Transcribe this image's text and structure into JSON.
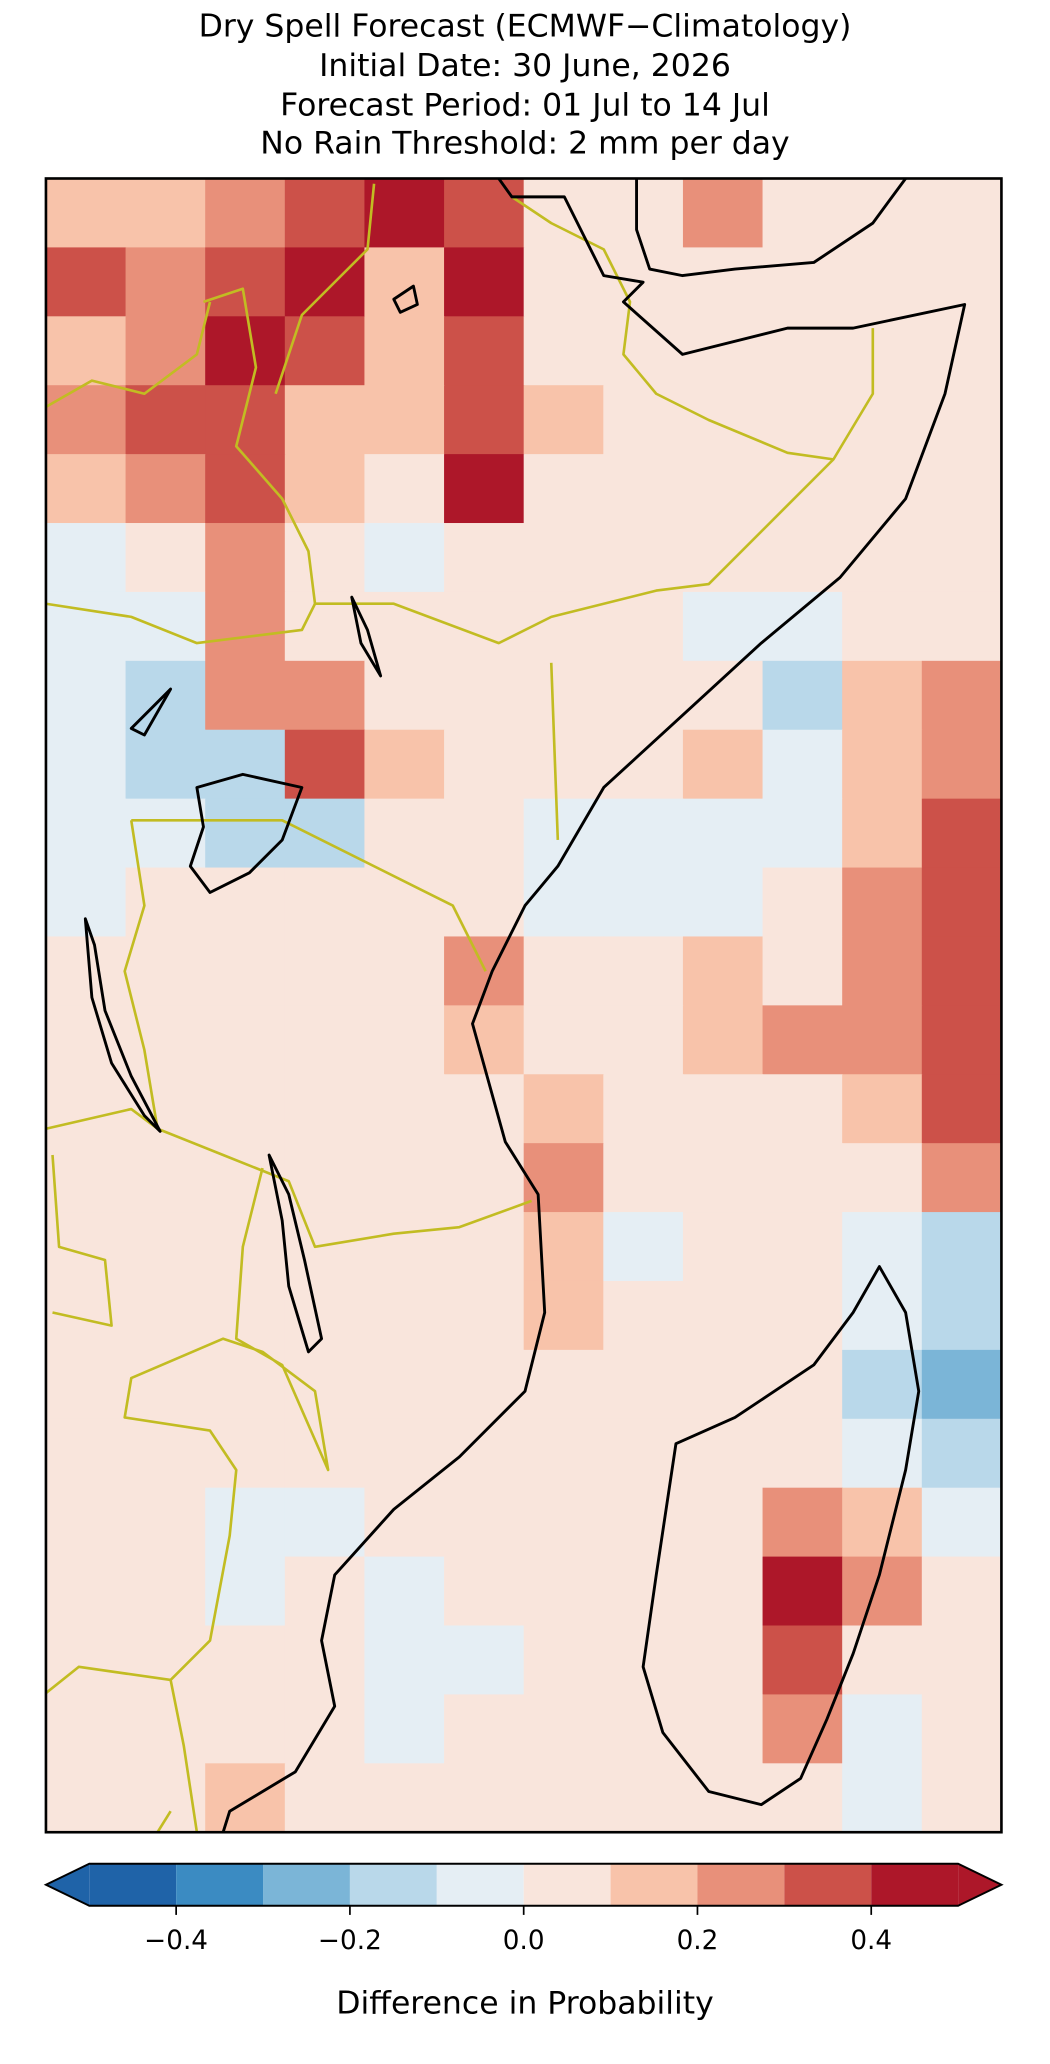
{
  "title": [
    "Dry Spell Forecast (ECMWF−Climatology)",
    "Initial Date: 30 June, 2026",
    "Forecast Period: 01 Jul to 14 Jul",
    "No Rain Threshold: 2 mm per day"
  ],
  "map": {
    "cells": [
      [
        0.15,
        0.15,
        0.25,
        0.35,
        0.45,
        0.35,
        0.05,
        0.05,
        0.25,
        0.05,
        0.05,
        0.05
      ],
      [
        0.3,
        0.25,
        0.35,
        0.45,
        0.15,
        0.45,
        0.05,
        0.05,
        0.05,
        0.05,
        0.05,
        0.05
      ],
      [
        0.15,
        0.25,
        0.45,
        0.35,
        0.15,
        0.35,
        0.05,
        0.05,
        0.05,
        0.05,
        0.05,
        0.05
      ],
      [
        0.25,
        0.3,
        0.35,
        0.15,
        0.15,
        0.35,
        0.15,
        0.05,
        0.05,
        0.05,
        0.05,
        0.05
      ],
      [
        0.15,
        0.25,
        0.35,
        0.15,
        0.05,
        0.45,
        0.05,
        0.05,
        0.05,
        0.05,
        0.05,
        0.05
      ],
      [
        -0.05,
        0.05,
        0.25,
        0.05,
        -0.05,
        0.05,
        0.05,
        0.05,
        0.05,
        0.05,
        0.05,
        0.05
      ],
      [
        -0.05,
        -0.05,
        0.25,
        0.05,
        0.05,
        0.05,
        0.05,
        0.05,
        -0.05,
        -0.05,
        0.05,
        0.05
      ],
      [
        -0.05,
        -0.15,
        0.25,
        0.25,
        0.05,
        0.05,
        0.05,
        0.05,
        0.05,
        -0.15,
        0.15,
        0.25
      ],
      [
        -0.05,
        -0.15,
        -0.15,
        0.35,
        0.15,
        0.05,
        0.05,
        0.05,
        0.15,
        -0.05,
        0.15,
        0.25
      ],
      [
        -0.05,
        -0.05,
        -0.15,
        -0.15,
        0.05,
        0.05,
        -0.05,
        -0.05,
        -0.05,
        -0.05,
        0.15,
        0.3
      ],
      [
        -0.05,
        0.05,
        0.05,
        0.05,
        0.05,
        0.05,
        -0.05,
        -0.05,
        -0.05,
        0.05,
        0.2,
        0.3
      ],
      [
        0.05,
        0.05,
        0.05,
        0.05,
        0.05,
        0.25,
        0.05,
        0.05,
        0.15,
        0.05,
        0.25,
        0.35
      ],
      [
        0.05,
        0.05,
        0.05,
        0.05,
        0.05,
        0.15,
        0.05,
        0.05,
        0.15,
        0.25,
        0.25,
        0.35
      ],
      [
        0.05,
        0.05,
        0.05,
        0.05,
        0.05,
        0.05,
        0.15,
        0.05,
        0.05,
        0.05,
        0.15,
        0.35
      ],
      [
        0.05,
        0.05,
        0.05,
        0.05,
        0.05,
        0.05,
        0.2,
        0.05,
        0.05,
        0.05,
        0.05,
        0.25
      ],
      [
        0.05,
        0.05,
        0.05,
        0.05,
        0.05,
        0.05,
        0.15,
        -0.05,
        0.05,
        0.05,
        -0.05,
        -0.15
      ],
      [
        0.05,
        0.05,
        0.05,
        0.05,
        0.05,
        0.05,
        0.15,
        0.05,
        0.05,
        0.05,
        -0.05,
        -0.15
      ],
      [
        0.05,
        0.05,
        0.05,
        0.05,
        0.05,
        0.05,
        0.05,
        0.05,
        0.05,
        0.05,
        -0.15,
        -0.25
      ],
      [
        0.05,
        0.05,
        0.05,
        0.05,
        0.05,
        0.05,
        0.05,
        0.05,
        0.05,
        0.05,
        -0.05,
        -0.2
      ],
      [
        0.05,
        0.05,
        -0.05,
        -0.05,
        0.05,
        0.05,
        0.05,
        0.05,
        0.05,
        0.2,
        0.15,
        -0.05
      ],
      [
        0.05,
        0.05,
        -0.05,
        0.05,
        -0.05,
        0.05,
        0.05,
        0.05,
        0.05,
        0.4,
        0.2,
        0.05
      ],
      [
        0.05,
        0.05,
        0.05,
        0.05,
        -0.05,
        -0.05,
        0.05,
        0.05,
        0.05,
        0.35,
        0.05,
        0.05
      ],
      [
        0.05,
        0.05,
        0.05,
        0.05,
        -0.05,
        0.05,
        0.05,
        0.05,
        0.05,
        0.25,
        -0.05,
        0.05
      ],
      [
        0.05,
        0.05,
        0.15,
        0.05,
        0.05,
        0.05,
        0.05,
        0.05,
        0.05,
        0.05,
        -0.05,
        0.05
      ]
    ]
  },
  "colorbar": {
    "label": "Difference in Probability",
    "boundaries": [
      -0.5,
      -0.4,
      -0.3,
      -0.2,
      -0.1,
      0,
      0.1,
      0.2,
      0.3,
      0.4,
      0.5
    ],
    "colors": [
      "#1f63a8",
      "#3b8bc2",
      "#7bb5d7",
      "#b9d8ea",
      "#e5eef4",
      "#f9e5dc",
      "#f8c3aa",
      "#e8907a",
      "#cc5149",
      "#ad1729"
    ],
    "extend": "both",
    "xlim": [
      -0.5,
      0.5
    ],
    "xticks": [
      {
        "value": -0.4,
        "label": "−0.4"
      },
      {
        "value": -0.2,
        "label": "−0.2"
      },
      {
        "value": 0,
        "label": "0.0"
      },
      0.2,
      0.4
    ]
  }
}
